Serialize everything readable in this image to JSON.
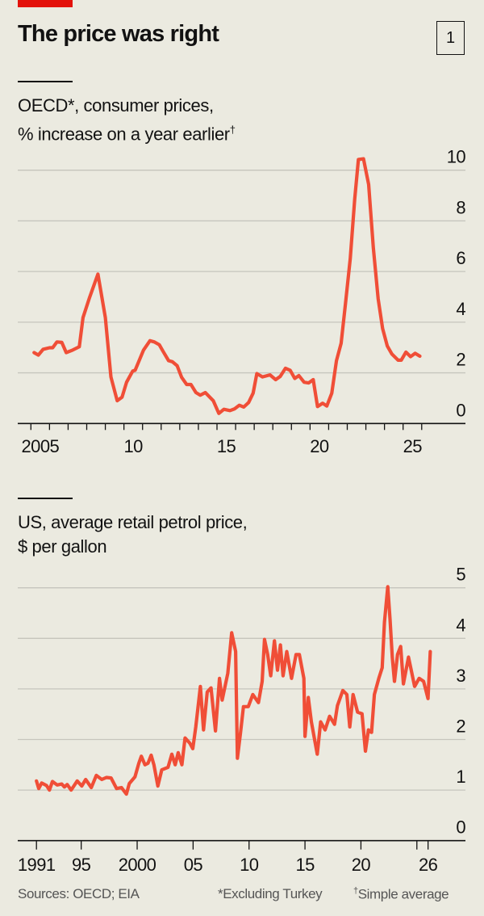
{
  "header": {
    "title": "The price was right",
    "chart_number": "1"
  },
  "colors": {
    "line": "#f04e37",
    "accent_bar": "#e3120b",
    "background": "#ebeae0",
    "grid": "#c6c5bd"
  },
  "chart_data": [
    {
      "type": "line",
      "subtitle_line1": "OECD*, consumer prices,",
      "subtitle_line2": "% increase on a year earlier",
      "subtitle_mark": "†",
      "ylim": [
        0,
        10
      ],
      "yticks": [
        "0",
        "2",
        "4",
        "6",
        "8",
        "10"
      ],
      "xlim": [
        2005,
        2026
      ],
      "xtick_labels": [
        {
          "year": 2005,
          "label": "2005"
        },
        {
          "year": 2010,
          "label": "10"
        },
        {
          "year": 2015,
          "label": "15"
        },
        {
          "year": 2020,
          "label": "20"
        },
        {
          "year": 2025,
          "label": "25"
        }
      ],
      "grid": true,
      "x": [
        2005.17,
        2005.4,
        2005.66,
        2006.0,
        2006.17,
        2006.4,
        2006.66,
        2006.9,
        2007.24,
        2007.6,
        2007.8,
        2008.15,
        2008.6,
        2009.0,
        2009.3,
        2009.64,
        2009.9,
        2010.14,
        2010.47,
        2010.6,
        2011.05,
        2011.4,
        2011.63,
        2011.9,
        2012.1,
        2012.4,
        2012.6,
        2012.86,
        2013.1,
        2013.37,
        2013.6,
        2013.87,
        2014.1,
        2014.37,
        2014.8,
        2015.1,
        2015.37,
        2015.7,
        2015.95,
        2016.2,
        2016.44,
        2016.7,
        2016.94,
        2017.14,
        2017.44,
        2017.85,
        2018.15,
        2018.4,
        2018.68,
        2018.93,
        2019.18,
        2019.4,
        2019.68,
        2019.93,
        2020.17,
        2020.4,
        2020.68,
        2020.9,
        2021.17,
        2021.42,
        2021.67,
        2021.9,
        2022.16,
        2022.4,
        2022.6,
        2022.87,
        2023.15,
        2023.4,
        2023.66,
        2023.9,
        2024.15,
        2024.4,
        2024.73,
        2024.9,
        2025.15,
        2025.4,
        2025.65,
        2025.9
      ],
      "y": [
        2.8,
        2.7,
        2.93,
        2.99,
        2.99,
        3.22,
        3.2,
        2.8,
        2.9,
        3.03,
        4.18,
        4.97,
        5.9,
        4.18,
        1.84,
        0.9,
        1.04,
        1.63,
        2.07,
        2.1,
        2.9,
        3.27,
        3.22,
        3.11,
        2.85,
        2.48,
        2.44,
        2.28,
        1.82,
        1.54,
        1.54,
        1.22,
        1.12,
        1.22,
        0.9,
        0.4,
        0.56,
        0.51,
        0.58,
        0.72,
        0.65,
        0.83,
        1.2,
        1.97,
        1.84,
        1.92,
        1.73,
        1.86,
        2.18,
        2.1,
        1.78,
        1.89,
        1.63,
        1.6,
        1.73,
        0.67,
        0.8,
        0.69,
        1.2,
        2.48,
        3.17,
        4.71,
        6.51,
        8.85,
        10.42,
        10.45,
        9.44,
        6.94,
        4.92,
        3.75,
        3.06,
        2.74,
        2.5,
        2.5,
        2.82,
        2.64,
        2.77,
        2.66
      ]
    },
    {
      "type": "line",
      "subtitle_line1": "US, average retail petrol price,",
      "subtitle_line2": "$ per gallon",
      "ylim": [
        0,
        5
      ],
      "yticks": [
        "0",
        "1",
        "2",
        "3",
        "4",
        "5"
      ],
      "xlim": [
        1991,
        2026
      ],
      "xtick_labels": [
        {
          "year": 1991,
          "label": "1991"
        },
        {
          "year": 1995,
          "label": "95"
        },
        {
          "year": 2000,
          "label": "2000"
        },
        {
          "year": 2005,
          "label": "05"
        },
        {
          "year": 2010,
          "label": "10"
        },
        {
          "year": 2015,
          "label": "15"
        },
        {
          "year": 2020,
          "label": "20"
        },
        {
          "year": 2026,
          "label": "26"
        }
      ],
      "grid": true,
      "x": [
        1991.0,
        1991.2,
        1991.47,
        1991.9,
        1992.16,
        1992.43,
        1992.85,
        1993.26,
        1993.5,
        1993.75,
        1994.1,
        1994.64,
        1995.05,
        1995.4,
        1995.9,
        1996.35,
        1996.84,
        1997.25,
        1997.67,
        1998.16,
        1998.6,
        1999.04,
        1999.3,
        1999.8,
        2000.15,
        2000.37,
        2000.7,
        2000.97,
        2001.25,
        2001.5,
        2001.85,
        2002.2,
        2002.76,
        2003.1,
        2003.4,
        2003.67,
        2004.0,
        2004.28,
        2004.7,
        2004.97,
        2005.24,
        2005.65,
        2005.93,
        2006.26,
        2006.6,
        2007.0,
        2007.36,
        2007.6,
        2008.1,
        2008.45,
        2008.8,
        2008.96,
        2009.24,
        2009.5,
        2009.93,
        2010.34,
        2010.84,
        2011.17,
        2011.38,
        2011.66,
        2011.94,
        2012.27,
        2012.54,
        2012.8,
        2013.04,
        2013.37,
        2013.8,
        2014.2,
        2014.5,
        2014.9,
        2015.0,
        2015.3,
        2015.57,
        2016.1,
        2016.4,
        2016.8,
        2017.2,
        2017.64,
        2017.9,
        2018.38,
        2018.74,
        2019.0,
        2019.3,
        2019.7,
        2020.1,
        2020.4,
        2020.67,
        2020.95,
        2021.2,
        2021.6,
        2021.9,
        2022.1,
        2022.4,
        2022.6,
        2022.8,
        2023.0,
        2023.27,
        2023.55,
        2023.8,
        2024.25,
        2024.5,
        2024.8,
        2025.2,
        2025.6,
        2026.0,
        2026.2
      ],
      "y": [
        1.18,
        1.03,
        1.14,
        1.09,
        1.0,
        1.17,
        1.1,
        1.12,
        1.06,
        1.11,
        1.0,
        1.18,
        1.08,
        1.21,
        1.05,
        1.29,
        1.21,
        1.25,
        1.24,
        1.03,
        1.05,
        0.92,
        1.13,
        1.26,
        1.53,
        1.67,
        1.5,
        1.53,
        1.69,
        1.5,
        1.08,
        1.4,
        1.45,
        1.71,
        1.5,
        1.74,
        1.5,
        2.03,
        1.93,
        1.82,
        2.25,
        3.05,
        2.19,
        2.94,
        3.02,
        2.17,
        3.21,
        2.78,
        3.31,
        4.11,
        3.74,
        1.63,
        2.14,
        2.65,
        2.65,
        2.89,
        2.73,
        3.15,
        3.98,
        3.68,
        3.26,
        3.95,
        3.37,
        3.87,
        3.26,
        3.74,
        3.21,
        3.68,
        3.68,
        3.21,
        2.06,
        2.83,
        2.35,
        1.71,
        2.35,
        2.19,
        2.46,
        2.3,
        2.67,
        2.97,
        2.89,
        2.25,
        2.89,
        2.54,
        2.51,
        1.77,
        2.19,
        2.14,
        2.89,
        3.21,
        3.42,
        4.32,
        5.02,
        4.38,
        3.63,
        3.15,
        3.68,
        3.84,
        3.1,
        3.63,
        3.37,
        3.05,
        3.21,
        3.15,
        2.81,
        3.74
      ]
    }
  ],
  "footer": {
    "sources": "Sources: OECD; EIA",
    "note1": "*Excluding Turkey",
    "note2_mark": "†",
    "note2": "Simple average"
  }
}
